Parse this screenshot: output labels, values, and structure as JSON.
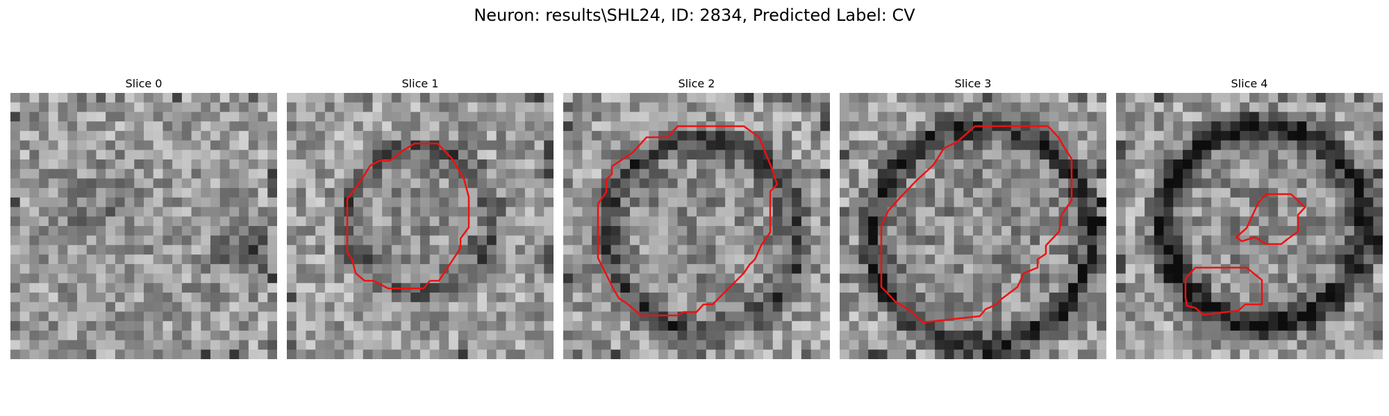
{
  "figure": {
    "title": "Neuron: results\\SHL24, ID: 2834, Predicted Label: CV"
  },
  "slices": [
    {
      "title": "Slice 0"
    },
    {
      "title": "Slice 1"
    },
    {
      "title": "Slice 2"
    },
    {
      "title": "Slice 3"
    },
    {
      "title": "Slice 4"
    }
  ],
  "colors": {
    "contour": "#ee1111"
  }
}
